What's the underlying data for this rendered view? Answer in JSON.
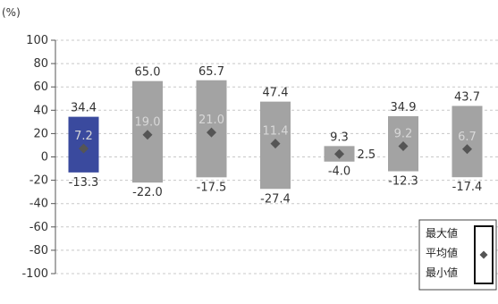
{
  "chart_data": {
    "type": "box",
    "unit_label": "(%)",
    "ylim": [
      -100,
      100
    ],
    "y_ticks": [
      100,
      80,
      60,
      40,
      20,
      0,
      -20,
      -40,
      -60,
      -80,
      -100
    ],
    "grid": "horizontal-dashed",
    "series": [
      {
        "max": 34.4,
        "avg": 7.2,
        "min": -13.3,
        "max_label": "34.4",
        "avg_label": "7.2",
        "min_label": "-13.3",
        "highlight": true
      },
      {
        "max": 65.0,
        "avg": 19.0,
        "min": -22.0,
        "max_label": "65.0",
        "avg_label": "19.0",
        "min_label": "-22.0",
        "highlight": false
      },
      {
        "max": 65.7,
        "avg": 21.0,
        "min": -17.5,
        "max_label": "65.7",
        "avg_label": "21.0",
        "min_label": "-17.5",
        "highlight": false
      },
      {
        "max": 47.4,
        "avg": 11.4,
        "min": -27.4,
        "max_label": "47.4",
        "avg_label": "11.4",
        "min_label": "-27.4",
        "highlight": false
      },
      {
        "max": 9.3,
        "avg": 2.5,
        "min": -4.0,
        "max_label": "9.3",
        "avg_label": "2.5",
        "min_label": "-4.0",
        "highlight": false
      },
      {
        "max": 34.9,
        "avg": 9.2,
        "min": -12.3,
        "max_label": "34.9",
        "avg_label": "9.2",
        "min_label": "-12.3",
        "highlight": false
      },
      {
        "max": 43.7,
        "avg": 6.7,
        "min": -17.4,
        "max_label": "43.7",
        "avg_label": "6.7",
        "min_label": "-17.4",
        "highlight": false
      }
    ],
    "legend": {
      "position": "bottom-right",
      "items": [
        "最大値",
        "平均値",
        "最小値"
      ]
    },
    "colors": {
      "highlight_bar": "#3a4a9e",
      "bar": "#a3a3a3",
      "marker": "#555555",
      "grid": "#c8c8c8"
    }
  }
}
